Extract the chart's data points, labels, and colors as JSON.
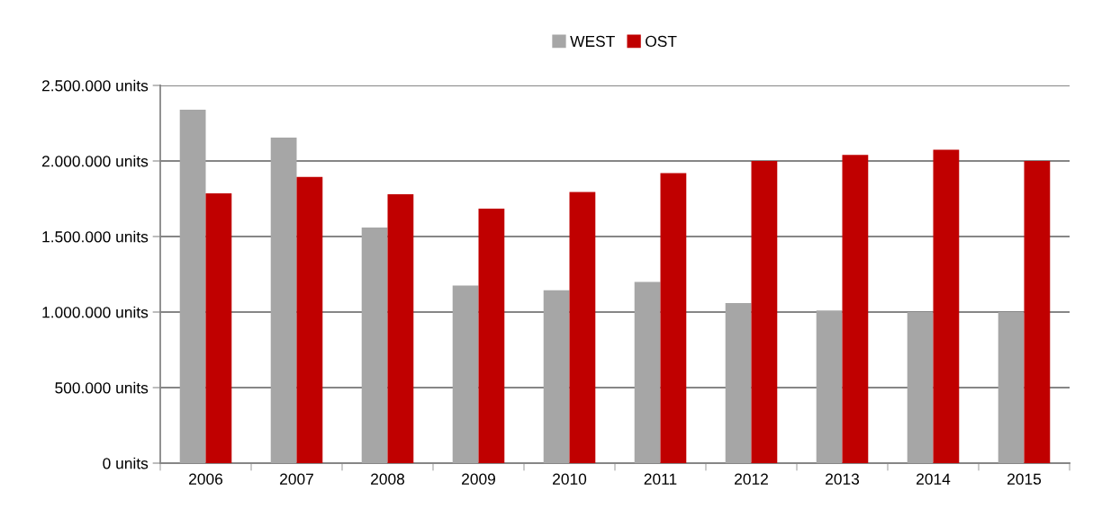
{
  "chart_data": {
    "type": "bar",
    "categories": [
      "2006",
      "2007",
      "2008",
      "2009",
      "2010",
      "2011",
      "2012",
      "2013",
      "2014",
      "2015"
    ],
    "series": [
      {
        "name": "WEST",
        "color": "#a6a6a6",
        "values": [
          2340000,
          2155000,
          1560000,
          1175000,
          1145000,
          1200000,
          1060000,
          1010000,
          1000000,
          1000000
        ]
      },
      {
        "name": "OST",
        "color": "#c00000",
        "values": [
          1785000,
          1895000,
          1780000,
          1685000,
          1795000,
          1920000,
          2000000,
          2040000,
          2075000,
          2000000
        ]
      }
    ],
    "ylim": [
      0,
      2500000
    ],
    "yticks": [
      {
        "value": 0,
        "label": "0 units"
      },
      {
        "value": 500000,
        "label": "500.000 units"
      },
      {
        "value": 1000000,
        "label": "1.000.000 units"
      },
      {
        "value": 1500000,
        "label": "1.500.000 units"
      },
      {
        "value": 2000000,
        "label": "2.000.000 units"
      },
      {
        "value": 2500000,
        "label": "2.500.000 units"
      }
    ],
    "grid": "y",
    "legend": "top"
  }
}
